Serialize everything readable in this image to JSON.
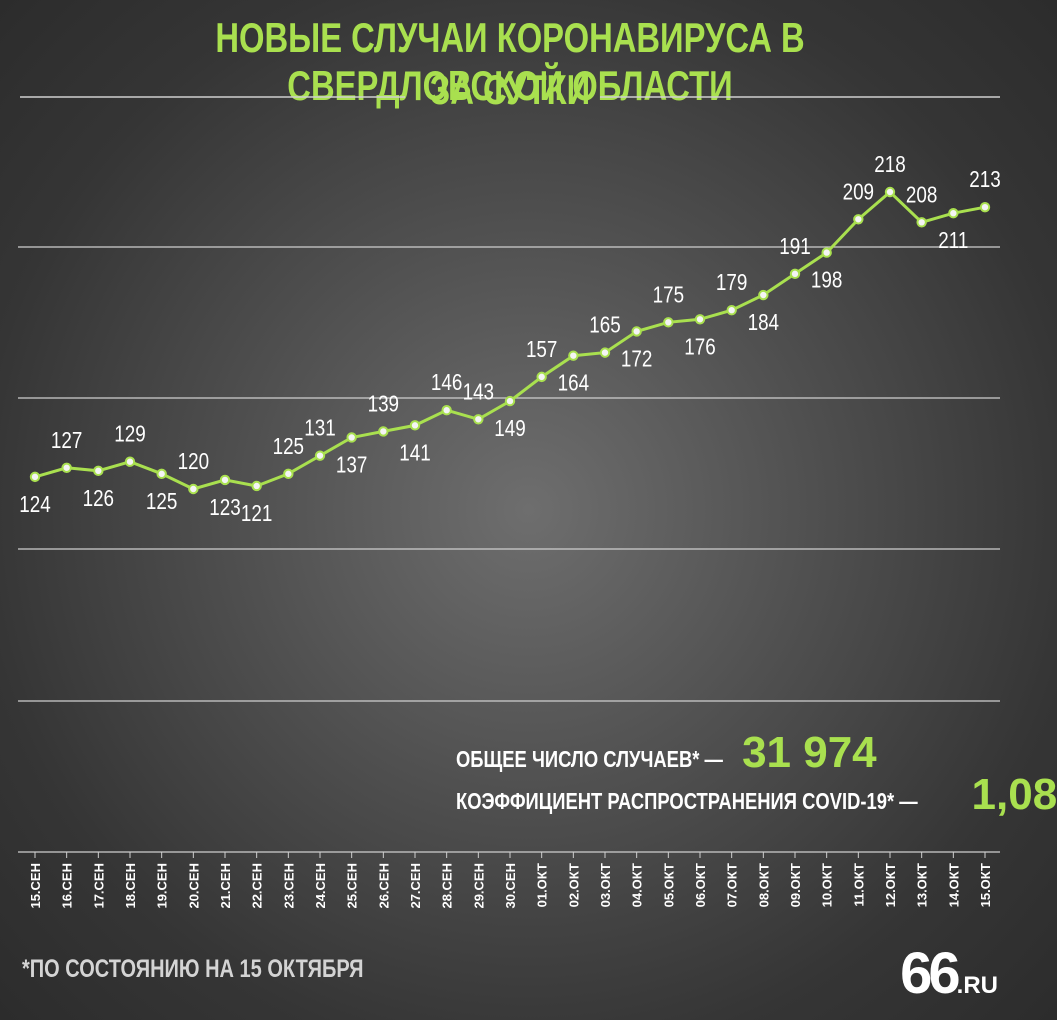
{
  "header": {
    "title_line1": "НОВЫЕ СЛУЧАИ КОРОНАВИРУСА В СВЕРДЛОВСКОЙ ОБЛАСТИ",
    "title_line2": "ЗА СУТКИ"
  },
  "colors": {
    "accent": "#a9e04f",
    "text": "#ffffff",
    "grid": "#cfcfcf"
  },
  "chart_data": {
    "type": "line",
    "categories": [
      "15.СЕН",
      "16.СЕН",
      "17.СЕН",
      "18.СЕН",
      "19.СЕН",
      "20.СЕН",
      "21.СЕН",
      "22.СЕН",
      "23.СЕН",
      "24.СЕН",
      "25.СЕН",
      "26.СЕН",
      "27.СЕН",
      "28.СЕН",
      "29.СЕН",
      "30.СЕН",
      "01.ОКТ",
      "02.ОКТ",
      "03.ОКТ",
      "04.ОКТ",
      "05.ОКТ",
      "06.ОКТ",
      "07.ОКТ",
      "08.ОКТ",
      "09.ОКТ",
      "10.ОКТ",
      "11.ОКТ",
      "12.ОКТ",
      "13.ОКТ",
      "14.ОКТ",
      "15.ОКТ"
    ],
    "values": [
      124,
      127,
      126,
      129,
      125,
      120,
      123,
      121,
      125,
      131,
      137,
      139,
      141,
      146,
      143,
      149,
      157,
      164,
      165,
      172,
      175,
      176,
      179,
      184,
      191,
      198,
      209,
      218,
      208,
      211,
      213
    ],
    "label_position": [
      "below",
      "above",
      "below",
      "above",
      "below",
      "above",
      "below",
      "below",
      "above",
      "above",
      "below",
      "above",
      "below",
      "above",
      "above",
      "below",
      "above",
      "below",
      "above",
      "below",
      "above",
      "below",
      "above",
      "below",
      "above",
      "below",
      "above",
      "above",
      "above",
      "below",
      "above"
    ],
    "grid": true
  },
  "stats": {
    "total_label": "ОБЩЕЕ ЧИСЛО СЛУЧАЕВ* —",
    "total_value": "31 974",
    "coef_label": "КОЭФФИЦИЕНТ РАСПРОСТРАНЕНИЯ COVID-19* —",
    "coef_value": "1,08"
  },
  "footer": {
    "note": "*ПО СОСТОЯНИЮ НА 15 ОКТЯБРЯ",
    "logo_main": "66",
    "logo_suffix": ".RU"
  }
}
